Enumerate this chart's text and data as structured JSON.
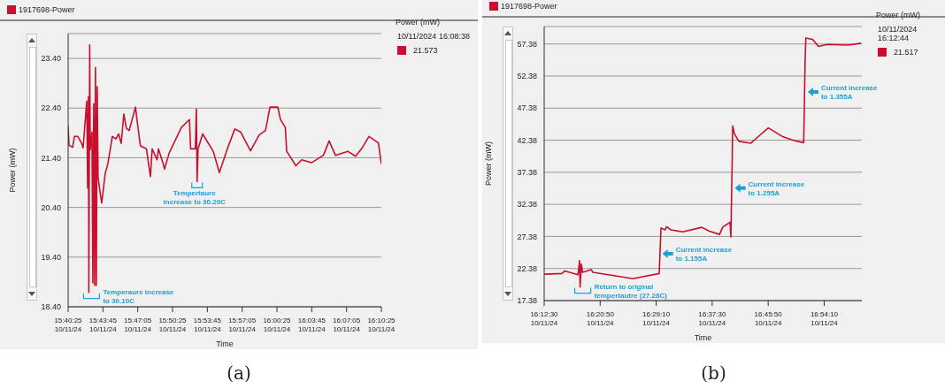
{
  "chart_data": [
    {
      "type": "line",
      "ylabel": "Power (mW)",
      "xlabel": "Time",
      "grid": "y",
      "legend": "top left",
      "xlim": [
        "2024-10-11T15:40:25",
        "2024-10-11T16:10:25"
      ],
      "ylim": [
        18.4,
        23.9
      ],
      "xticks": [
        {
          "value": "2024-10-11T15:40:25",
          "label": "15:40:25\n10/11/24"
        },
        {
          "value": "2024-10-11T15:43:45",
          "label": "15:43:45\n10/11/24"
        },
        {
          "value": "2024-10-11T15:47:05",
          "label": "15:47:05\n10/11/24"
        },
        {
          "value": "2024-10-11T15:50:25",
          "label": "15:50:25\n10/11/24"
        },
        {
          "value": "2024-10-11T15:53:45",
          "label": "15:53:45\n10/11/24"
        },
        {
          "value": "2024-10-11T15:57:05",
          "label": "15:57:05\n10/11/24"
        },
        {
          "value": "2024-10-11T16:00:25",
          "label": "16:00:25\n10/11/24"
        },
        {
          "value": "2024-10-11T16:03:45",
          "label": "16:03:45\n10/11/24"
        },
        {
          "value": "2024-10-11T16:07:05",
          "label": "16:07:05\n10/11/24"
        },
        {
          "value": "2024-10-11T16:10:25",
          "label": "16:10:25\n10/11/24"
        }
      ],
      "yticks": [
        {
          "value": 18.4,
          "label": "18.40"
        },
        {
          "value": 19.4,
          "label": "19.40"
        },
        {
          "value": 20.4,
          "label": "20.40"
        },
        {
          "value": 21.4,
          "label": "21.40"
        },
        {
          "value": 22.4,
          "label": "22.40"
        },
        {
          "value": 23.4,
          "label": "23.40"
        }
      ],
      "x": [
        "2024-10-11T15:40:25",
        "2024-10-11T15:40:30",
        "2024-10-11T15:40:51",
        "2024-10-11T15:41:01",
        "2024-10-11T15:41:21",
        "2024-10-11T15:41:41",
        "2024-10-11T15:41:51",
        "2024-10-11T15:42:12",
        "2024-10-11T15:42:17",
        "2024-10-11T15:42:22",
        "2024-10-11T15:42:24",
        "2024-10-11T15:42:29",
        "2024-10-11T15:42:32",
        "2024-10-11T15:42:42",
        "2024-10-11T15:42:47",
        "2024-10-11T15:42:52",
        "2024-10-11T15:42:57",
        "2024-10-11T15:43:02",
        "2024-10-11T15:43:07",
        "2024-10-11T15:43:12",
        "2024-10-11T15:43:17",
        "2024-10-11T15:43:28",
        "2024-10-11T15:43:38",
        "2024-10-11T15:43:58",
        "2024-10-11T15:44:14",
        "2024-10-11T15:44:39",
        "2024-10-11T15:45:00",
        "2024-10-11T15:45:15",
        "2024-10-11T15:45:30",
        "2024-10-11T15:45:45",
        "2024-10-11T15:46:00",
        "2024-10-11T15:46:16",
        "2024-10-11T15:46:52",
        "2024-10-11T15:47:02",
        "2024-10-11T15:47:20",
        "2024-10-11T15:47:55",
        "2024-10-11T15:48:18",
        "2024-10-11T15:48:28",
        "2024-10-11T15:48:56",
        "2024-10-11T15:49:04",
        "2024-10-11T15:49:32",
        "2024-10-11T15:49:39",
        "2024-10-11T15:50:05",
        "2024-10-11T15:51:16",
        "2024-10-11T15:52:02",
        "2024-10-11T15:52:09",
        "2024-10-11T15:52:36",
        "2024-10-11T15:52:42",
        "2024-10-11T15:52:46",
        "2024-10-11T15:52:52",
        "2024-10-11T15:53:18",
        "2024-10-11T15:54:19",
        "2024-10-11T15:54:54",
        "2024-10-11T15:55:40",
        "2024-10-11T15:56:23",
        "2024-10-11T15:56:56",
        "2024-10-11T15:57:53",
        "2024-10-11T15:58:43",
        "2024-10-11T15:59:19",
        "2024-10-11T15:59:45",
        "2024-10-11T16:00:30",
        "2024-10-11T16:00:45",
        "2024-10-11T16:01:13",
        "2024-10-11T16:01:21",
        "2024-10-11T16:02:14",
        "2024-10-11T16:02:47",
        "2024-10-11T16:03:43",
        "2024-10-11T16:04:52",
        "2024-10-11T16:05:25",
        "2024-10-11T16:06:01",
        "2024-10-11T16:07:12",
        "2024-10-11T16:07:57",
        "2024-10-11T16:08:31",
        "2024-10-11T16:09:14",
        "2024-10-11T16:10:08",
        "2024-10-11T16:10:25"
      ],
      "series": [
        {
          "name": "1917698-Power",
          "color": "#c8102e",
          "values": [
            22.04,
            21.65,
            21.61,
            21.83,
            21.83,
            21.7,
            21.6,
            22.54,
            20.79,
            22.63,
            18.69,
            23.67,
            21.56,
            21.92,
            18.88,
            22.49,
            18.83,
            23.22,
            18.83,
            22.83,
            21.02,
            20.72,
            20.49,
            21.08,
            21.29,
            21.83,
            21.78,
            21.88,
            21.69,
            22.28,
            21.99,
            21.95,
            22.42,
            22.13,
            21.64,
            21.58,
            21.02,
            21.58,
            21.36,
            21.58,
            21.27,
            21.17,
            21.49,
            22.01,
            22.17,
            21.58,
            21.58,
            22.38,
            20.92,
            21.58,
            21.88,
            21.53,
            21.1,
            21.58,
            21.98,
            21.92,
            21.54,
            21.86,
            21.95,
            22.42,
            22.42,
            22.17,
            22.01,
            21.53,
            21.24,
            21.36,
            21.3,
            21.45,
            21.74,
            21.45,
            21.53,
            21.43,
            21.58,
            21.83,
            21.7,
            21.27
          ]
        }
      ],
      "annotations": [
        {
          "text": "Temperaure increase\nto 30.10C",
          "x": "2024-10-11T15:42:24",
          "y": 18.69
        },
        {
          "text": "Tempertaure\nincrease to 30.20C",
          "x": "2024-10-11T15:52:46",
          "y": 20.92
        },
        "Power (mW)",
        "10/11/2024 16:08:38",
        "21.573",
        "(a)"
      ]
    },
    {
      "type": "line",
      "ylabel": "Power (mW)",
      "xlabel": "Time",
      "grid": "y",
      "legend": "top left",
      "xlim": [
        "2024-10-11T16:12:30",
        "2024-10-11T16:59:46"
      ],
      "ylim": [
        17.38,
        60.1
      ],
      "xticks": [
        {
          "value": "2024-10-11T16:12:30",
          "label": "16:12:30\n10/11/24"
        },
        {
          "value": "2024-10-11T16:20:50",
          "label": "16:20:50\n10/11/24"
        },
        {
          "value": "2024-10-11T16:29:10",
          "label": "16:29:10\n10/11/24"
        },
        {
          "value": "2024-10-11T16:37:30",
          "label": "16:37:30\n10/11/24"
        },
        {
          "value": "2024-10-11T16:45:50",
          "label": "16:45:50\n10/11/24"
        },
        {
          "value": "2024-10-11T16:54:10",
          "label": "16:54:10\n10/11/24"
        }
      ],
      "yticks": [
        17.38,
        22.38,
        27.38,
        32.38,
        37.38,
        42.38,
        47.38,
        52.38,
        57.38
      ],
      "x": [
        "2024-10-11T16:12:30",
        "2024-10-11T16:15:08",
        "2024-10-11T16:15:34",
        "2024-10-11T16:17:32",
        "2024-10-11T16:17:46",
        "2024-10-11T16:17:51",
        "2024-10-11T16:18:02",
        "2024-10-11T16:18:12",
        "2024-10-11T16:18:52",
        "2024-10-11T16:19:31",
        "2024-10-11T16:19:44",
        "2024-10-11T16:23:55",
        "2024-10-11T16:25:40",
        "2024-10-11T16:29:37",
        "2024-10-11T16:29:42",
        "2024-10-11T16:29:53",
        "2024-10-11T16:30:30",
        "2024-10-11T16:30:43",
        "2024-10-11T16:31:22",
        "2024-10-11T16:33:08",
        "2024-10-11T16:35:58",
        "2024-10-11T16:37:05",
        "2024-10-11T16:38:36",
        "2024-10-11T16:39:03",
        "2024-10-11T16:40:09",
        "2024-10-11T16:40:17",
        "2024-10-11T16:40:22",
        "2024-10-11T16:40:29",
        "2024-10-11T16:40:33",
        "2024-10-11T16:40:48",
        "2024-10-11T16:41:28",
        "2024-10-11T16:43:13",
        "2024-10-11T16:44:06",
        "2024-10-11T16:45:51",
        "2024-10-11T16:48:03",
        "2024-10-11T16:49:48",
        "2024-10-11T16:51:07",
        "2024-10-11T16:51:20",
        "2024-10-11T16:51:26",
        "2024-10-11T16:52:26",
        "2024-10-11T16:53:19",
        "2024-10-11T16:54:38",
        "2024-10-11T16:57:42",
        "2024-10-11T16:59:40"
      ],
      "series": [
        {
          "name": "1917698-Power",
          "color": "#c8102e",
          "values": [
            21.5,
            21.6,
            22.0,
            21.4,
            23.6,
            19.5,
            23.1,
            21.8,
            22.0,
            22.2,
            21.8,
            21.1,
            20.8,
            21.6,
            23.8,
            28.7,
            28.4,
            28.9,
            28.4,
            28.1,
            28.8,
            28.2,
            27.7,
            28.8,
            29.6,
            27.3,
            32.6,
            39.5,
            44.6,
            43.4,
            42.2,
            41.9,
            42.7,
            44.3,
            42.9,
            42.3,
            42.0,
            54.9,
            58.3,
            58.1,
            57.0,
            57.3,
            57.2,
            57.5
          ]
        }
      ],
      "annotations": [
        {
          "text": "Return to original\ntempertautre (27.28C)",
          "x": "2024-10-11T16:17:51",
          "y": 19.5
        },
        {
          "text": "Current increase\nto 1.155A",
          "x": "2024-10-11T16:29:42",
          "y": 24.7
        },
        {
          "text": "Current increase\nto 1.255A",
          "x": "2024-10-11T16:40:29",
          "y": 34.9
        },
        {
          "text": "Current increase\nto 1.355A",
          "x": "2024-10-11T16:51:20",
          "y": 49.9
        },
        "Power (mW)",
        "10/11/2024 16:12:44",
        "21.517",
        "(b)"
      ]
    }
  ]
}
